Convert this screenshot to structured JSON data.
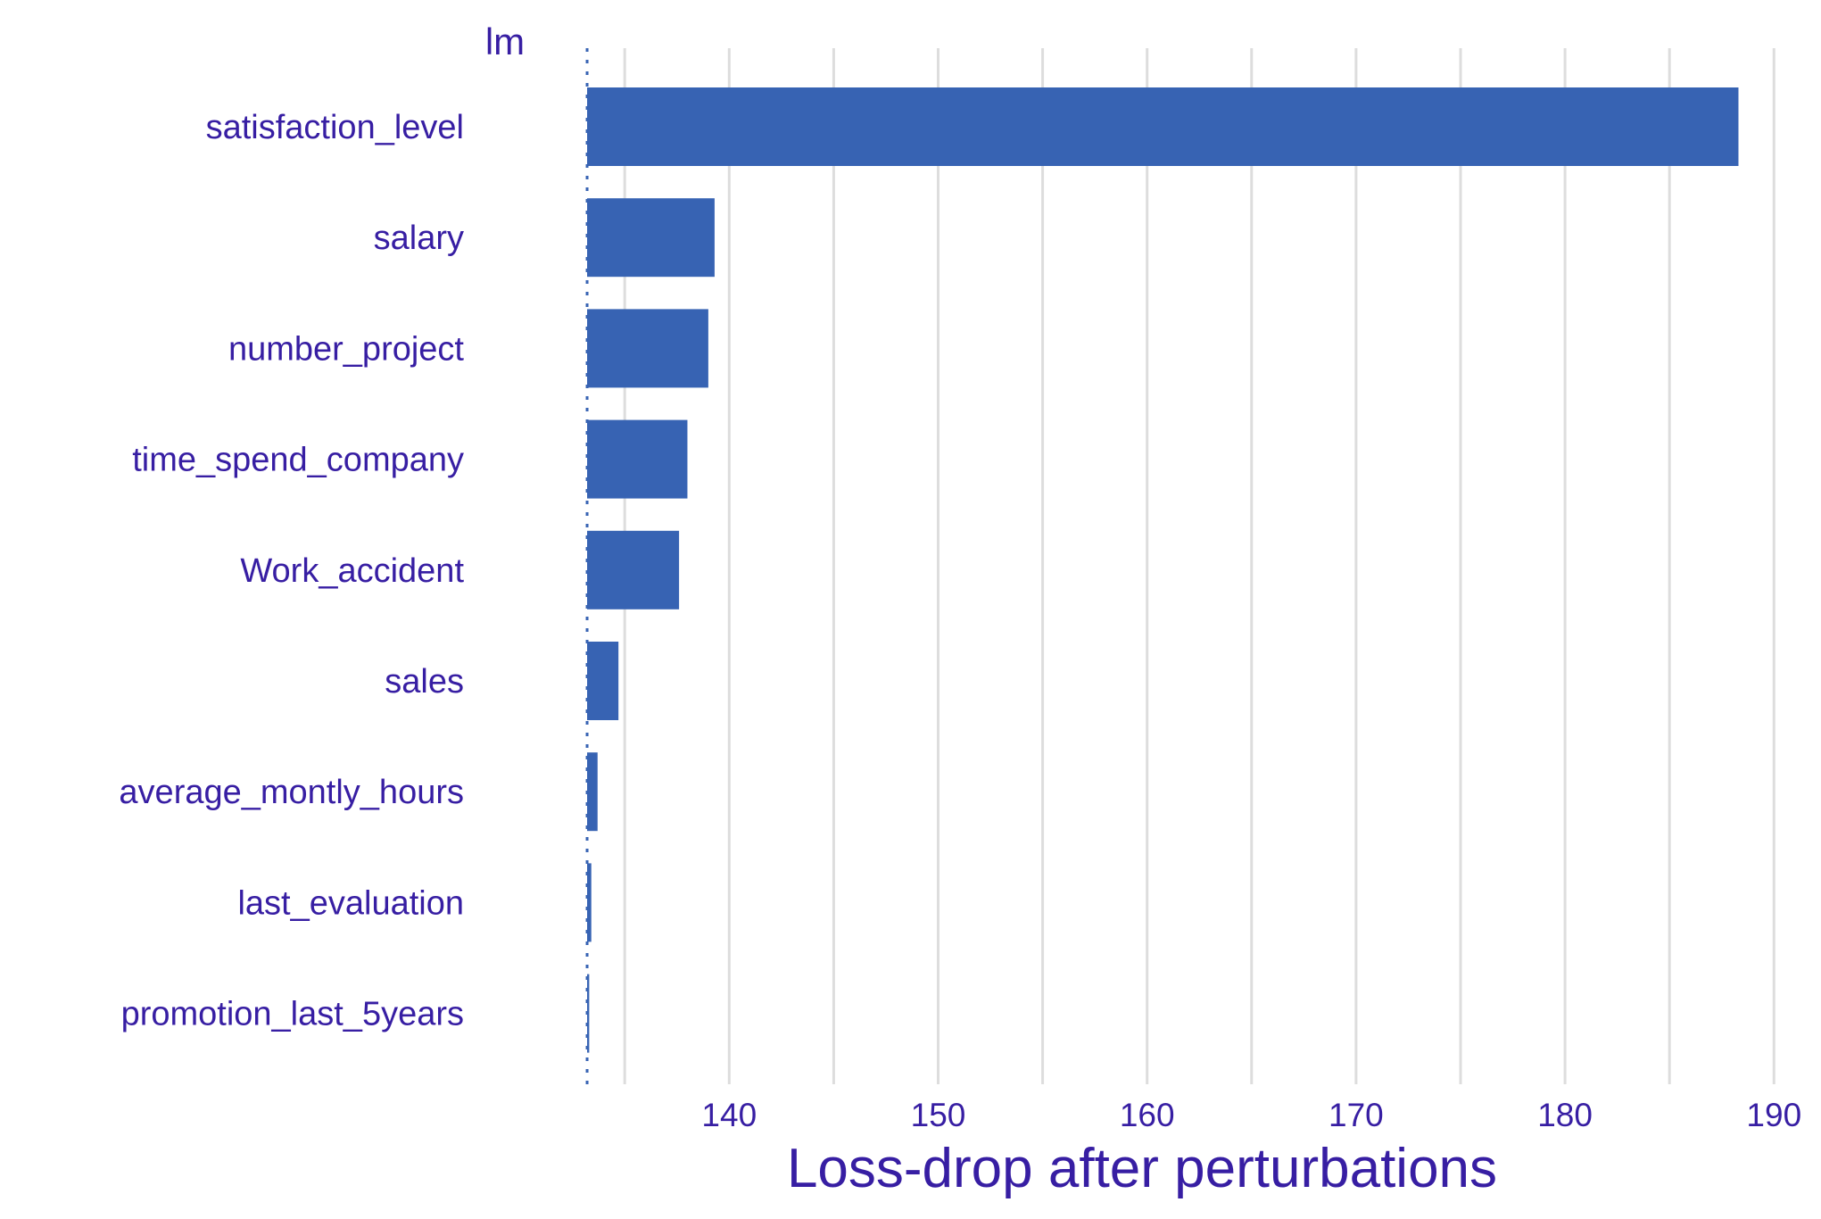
{
  "chart_data": {
    "type": "bar",
    "orientation": "horizontal",
    "panel_label": "lm",
    "xlabel": "Loss-drop after perturbations",
    "ylabel": "",
    "baseline": 133.2,
    "xlim": [
      128.8,
      190.5
    ],
    "xticks": [
      140,
      150,
      160,
      170,
      180,
      190
    ],
    "minor_gridlines": [
      135,
      145,
      155,
      165,
      175,
      185
    ],
    "grid": "vertical",
    "legend": "none",
    "categories": [
      "satisfaction_level",
      "salary",
      "number_project",
      "time_spend_company",
      "Work_accident",
      "sales",
      "average_montly_hours",
      "last_evaluation",
      "promotion_last_5years"
    ],
    "values": [
      188.3,
      139.3,
      139.0,
      138.0,
      137.6,
      134.7,
      133.7,
      133.4,
      133.3
    ]
  },
  "colors": {
    "bar": "#3763b3",
    "text": "#371ea3",
    "grid": "#dddddd",
    "baseline": "#3763b3",
    "background": "#ffffff"
  }
}
